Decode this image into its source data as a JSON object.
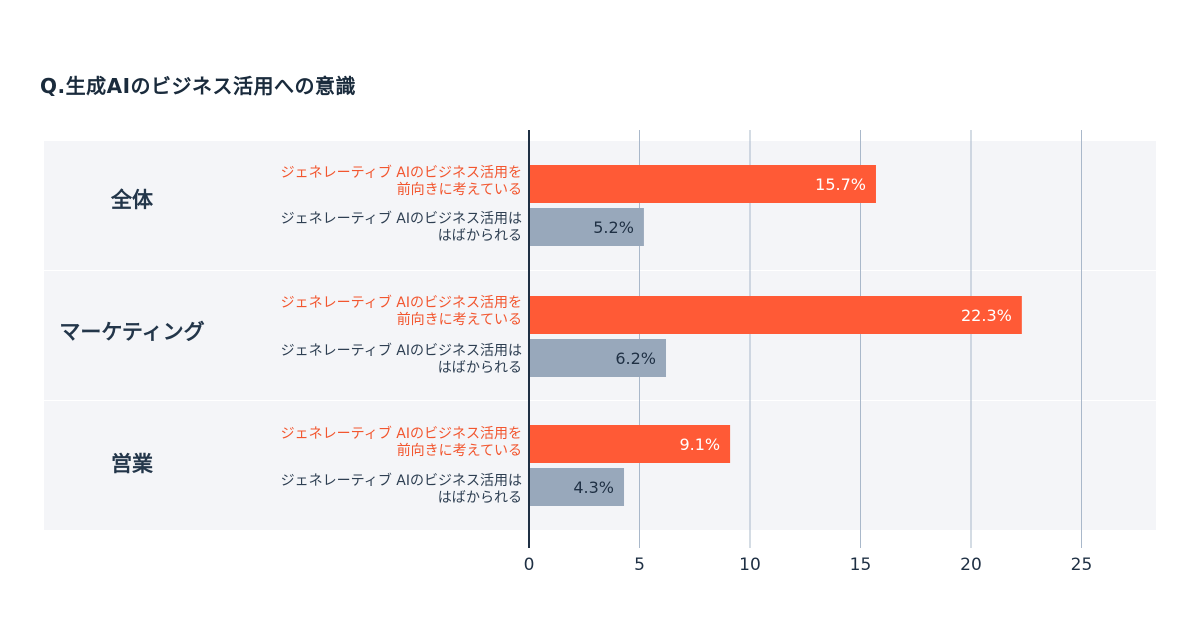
{
  "title": "Q.生成AIのビジネス活用への意識",
  "colors": {
    "positive": "#ff5a36",
    "uncertain": "#98a8bb",
    "band": "#f4f5f8",
    "grid": "#a9b8ca",
    "axis": "#1f3044"
  },
  "chart_data": {
    "type": "bar",
    "orientation": "horizontal",
    "title": "Q.生成AIのビジネス活用への意識",
    "xlabel": "",
    "ylabel": "",
    "xlim": [
      0,
      28
    ],
    "x_ticks": [
      0,
      5,
      10,
      15,
      20,
      25
    ],
    "grid": true,
    "categories": [
      "全体",
      "マーケティング",
      "営業"
    ],
    "series": [
      {
        "name": "ジェネレーティブ AIのビジネス活用を前向きに考えている",
        "label_line1": "ジェネレーティブ AIのビジネス活用を",
        "label_line2": "前向きに考えている",
        "values": [
          15.7,
          22.3,
          9.1
        ],
        "value_labels": [
          "15.7%",
          "22.3%",
          "9.1%"
        ]
      },
      {
        "name": "ジェネレーティブ AIのビジネス活用ははばかられる",
        "label_line1": "ジェネレーティブ AIのビジネス活用は",
        "label_line2": "はばかられる",
        "values": [
          5.2,
          6.2,
          4.3
        ],
        "value_labels": [
          "5.2%",
          "6.2%",
          "4.3%"
        ]
      }
    ]
  }
}
